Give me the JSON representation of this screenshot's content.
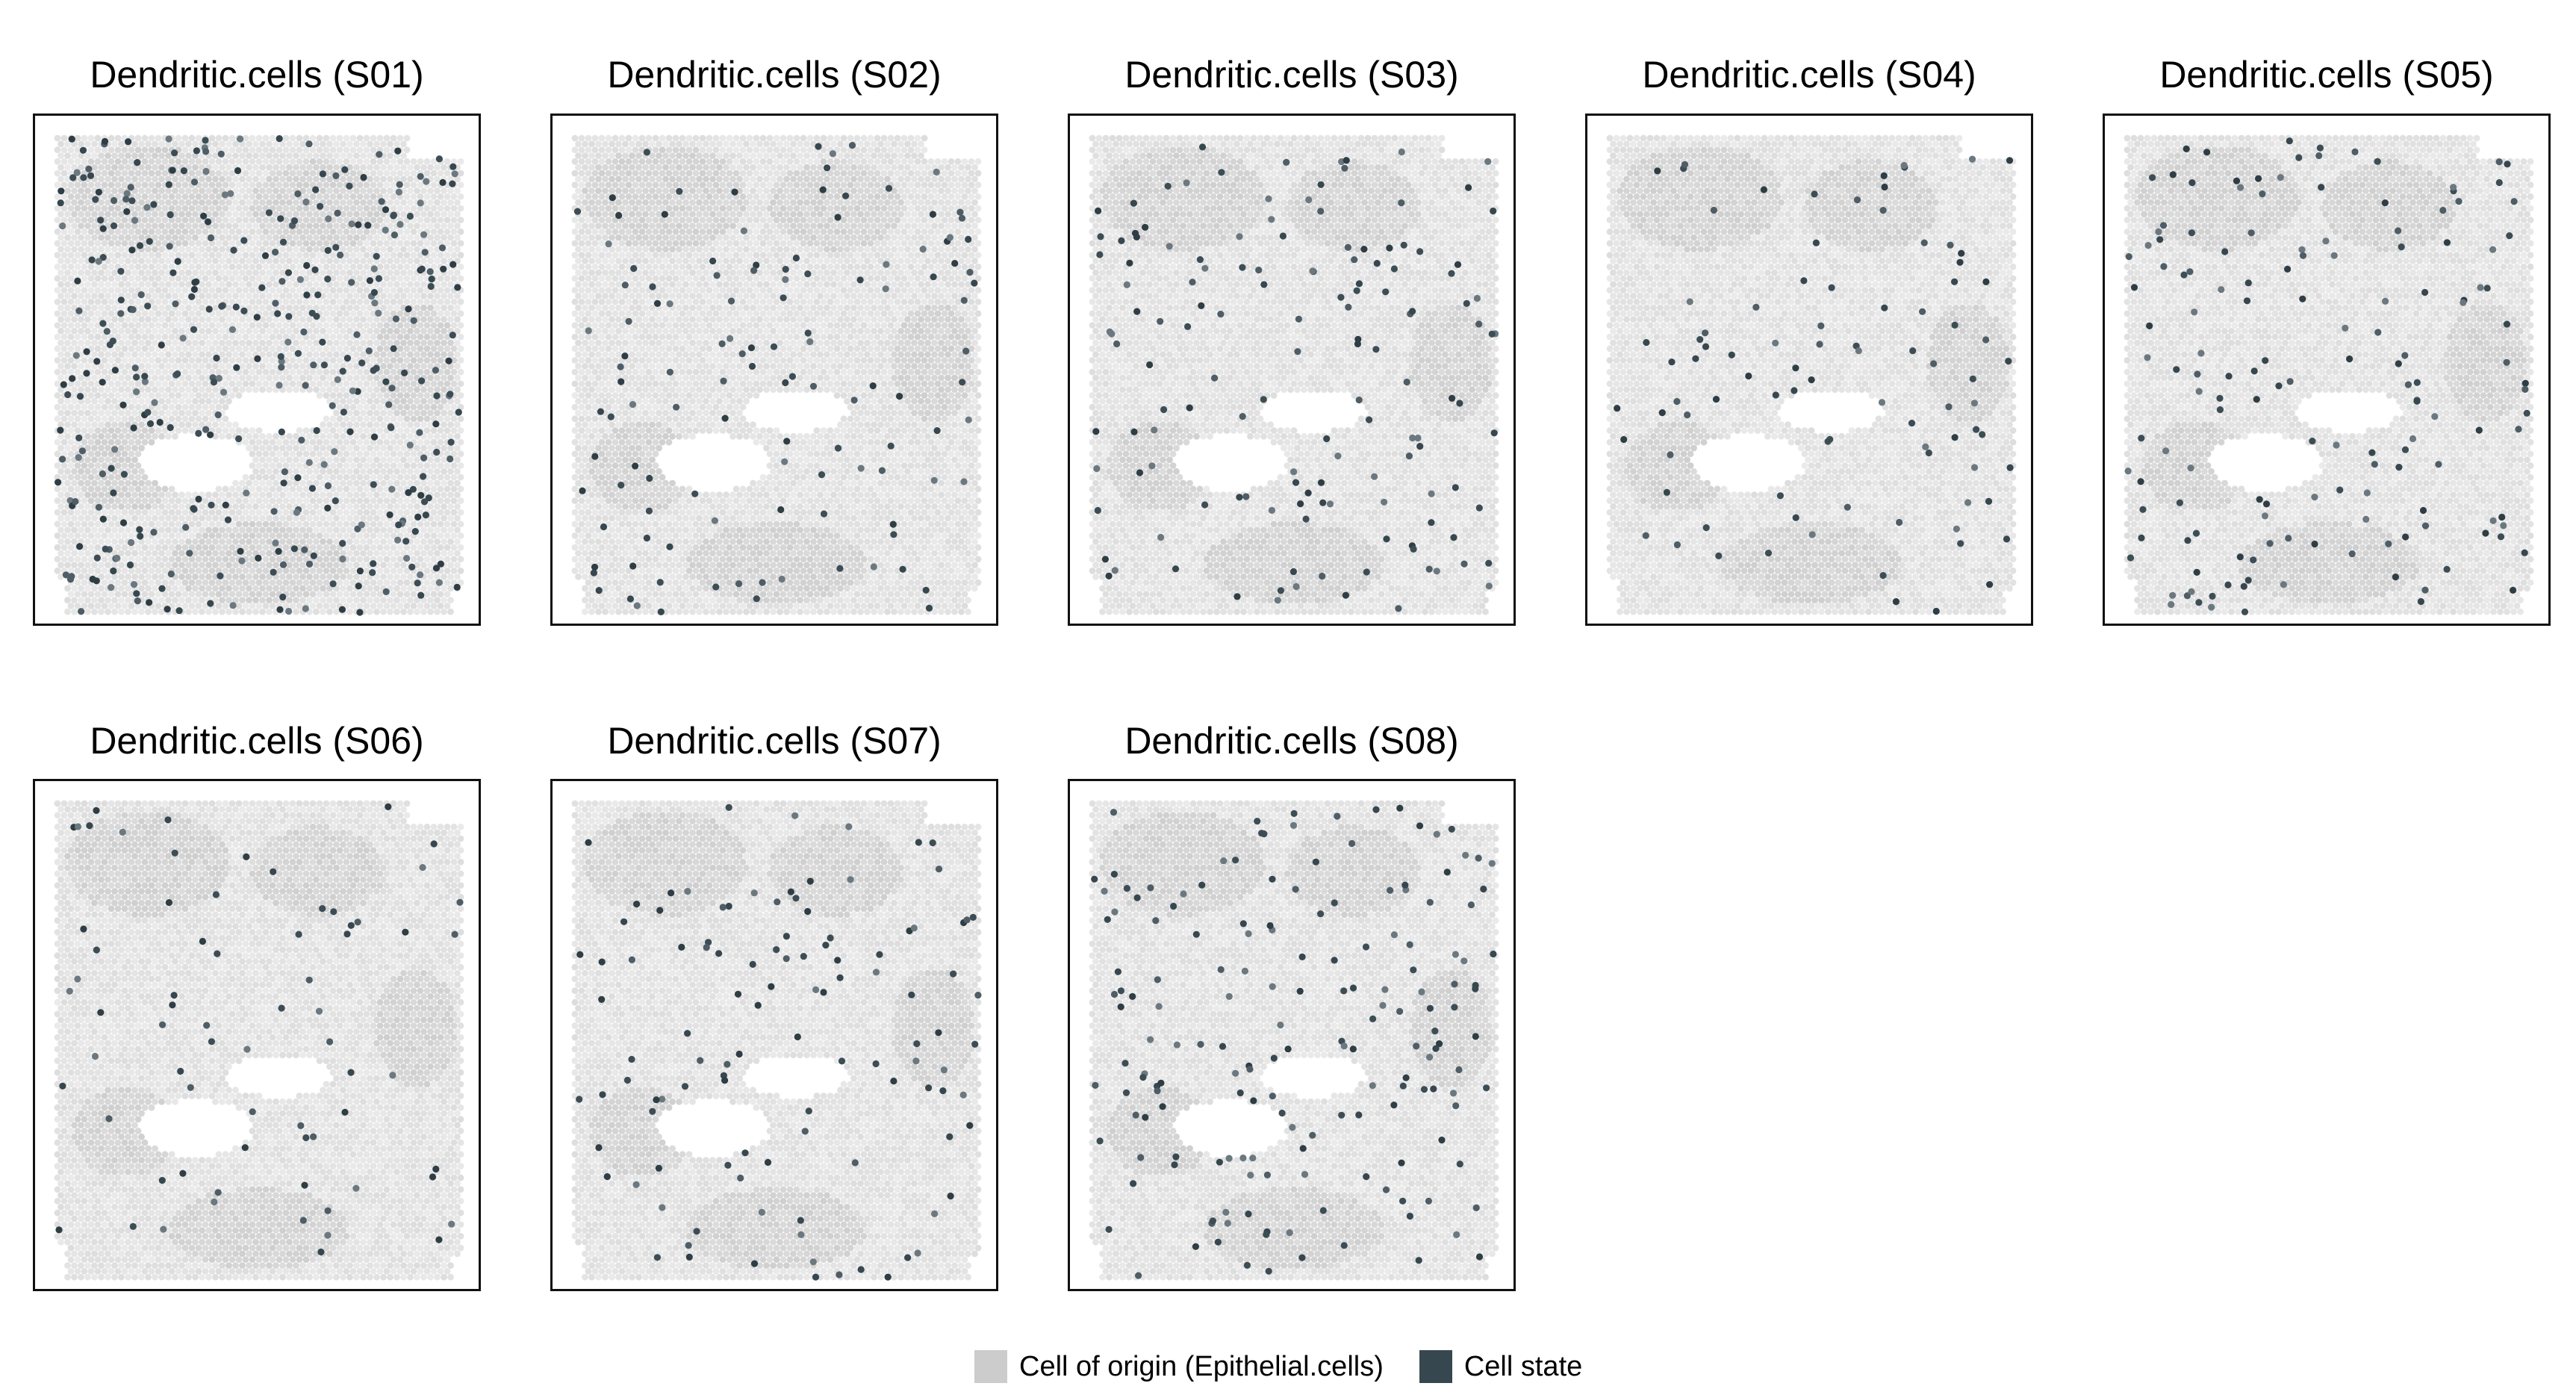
{
  "chart_data": {
    "type": "scatter",
    "subtype": "spatial-spot-map",
    "panels": [
      {
        "title": "Dendritic.cells (S01)",
        "sample": "S01",
        "n_state_spots": 380,
        "seed": 11
      },
      {
        "title": "Dendritic.cells (S02)",
        "sample": "S02",
        "n_state_spots": 120,
        "seed": 23
      },
      {
        "title": "Dendritic.cells (S03)",
        "sample": "S03",
        "n_state_spots": 140,
        "seed": 37
      },
      {
        "title": "Dendritic.cells (S04)",
        "sample": "S04",
        "n_state_spots": 90,
        "seed": 41
      },
      {
        "title": "Dendritic.cells (S05)",
        "sample": "S05",
        "n_state_spots": 150,
        "seed": 53
      },
      {
        "title": "Dendritic.cells (S06)",
        "sample": "S06",
        "n_state_spots": 70,
        "seed": 67
      },
      {
        "title": "Dendritic.cells (S07)",
        "sample": "S07",
        "n_state_spots": 110,
        "seed": 71
      },
      {
        "title": "Dendritic.cells (S08)",
        "sample": "S08",
        "n_state_spots": 170,
        "seed": 83
      }
    ],
    "legend": {
      "placement": "bottom",
      "items": [
        {
          "label": "Cell of origin (Epithelial.cells)",
          "color": "#cccccc"
        },
        {
          "label": "Cell state",
          "color": "#37474f"
        }
      ]
    },
    "axes": {
      "visible": false
    },
    "grid": false
  }
}
